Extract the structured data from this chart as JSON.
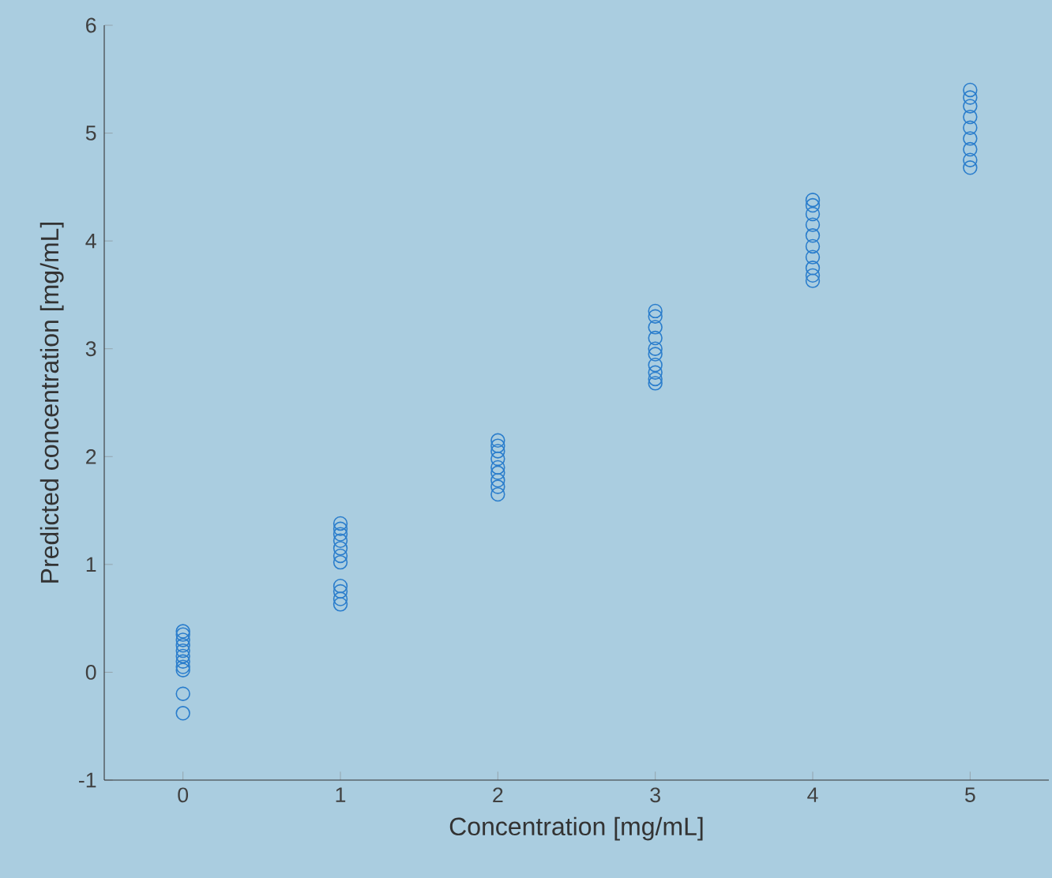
{
  "chart_data": {
    "type": "scatter",
    "xlabel": "Concentration [mg/mL]",
    "ylabel": "Predicted concentration [mg/mL]",
    "x": [
      0,
      0,
      0,
      0,
      0,
      0,
      0,
      0,
      0,
      0,
      0,
      1,
      1,
      1,
      1,
      1,
      1,
      1,
      1,
      1,
      1,
      1,
      2,
      2,
      2,
      2,
      2,
      2,
      2,
      2,
      2,
      3,
      3,
      3,
      3,
      3,
      3,
      3,
      3,
      3,
      3,
      4,
      4,
      4,
      4,
      4,
      4,
      4,
      4,
      4,
      4,
      5,
      5,
      5,
      5,
      5,
      5,
      5,
      5,
      5
    ],
    "values": [
      0.38,
      0.35,
      0.3,
      0.25,
      0.2,
      0.15,
      0.1,
      0.05,
      0.02,
      -0.2,
      -0.38,
      1.38,
      1.33,
      1.28,
      1.22,
      1.15,
      1.08,
      1.02,
      0.8,
      0.75,
      0.68,
      0.63,
      2.15,
      2.1,
      2.05,
      1.98,
      1.9,
      1.85,
      1.78,
      1.72,
      1.65,
      3.35,
      3.3,
      3.2,
      3.1,
      3.0,
      2.95,
      2.85,
      2.78,
      2.72,
      2.68,
      4.38,
      4.33,
      4.25,
      4.15,
      4.05,
      3.95,
      3.85,
      3.75,
      3.68,
      3.63,
      5.4,
      5.33,
      5.25,
      5.15,
      5.05,
      4.95,
      4.85,
      4.75,
      4.68
    ],
    "color": "#2a7dcc",
    "marker": "circle",
    "grid": false,
    "xlim": [
      -0.5,
      5.5
    ],
    "ylim": [
      -1,
      6
    ],
    "xticks": [
      0,
      1,
      2,
      3,
      4,
      5
    ],
    "yticks": [
      -1,
      0,
      1,
      2,
      3,
      4,
      5,
      6
    ]
  }
}
